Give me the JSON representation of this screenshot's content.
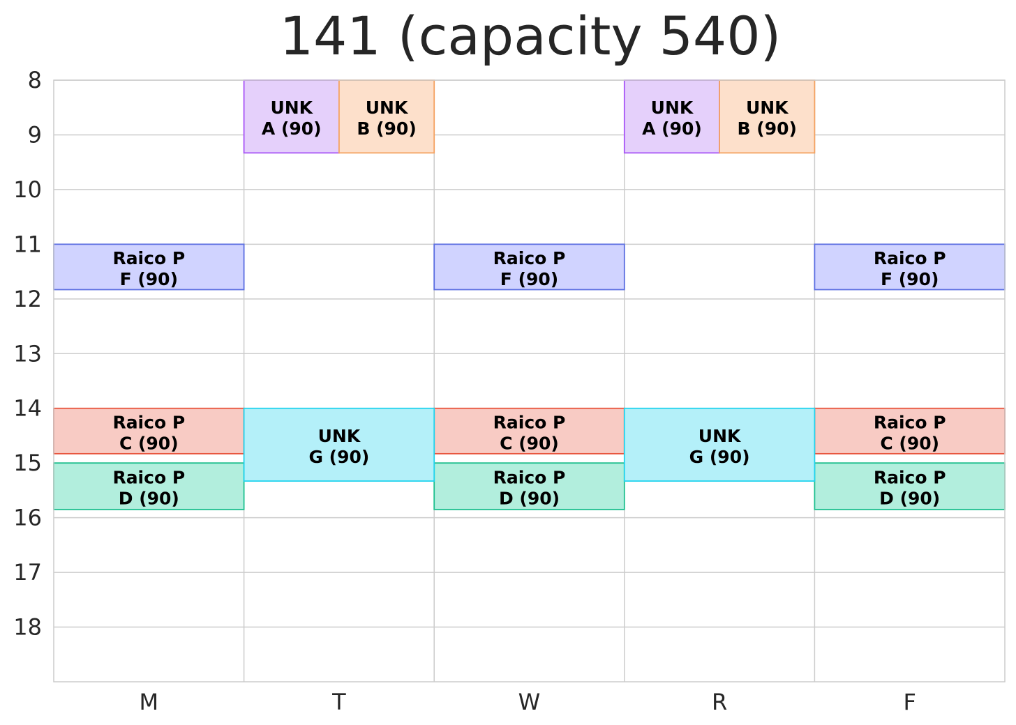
{
  "chart_data": {
    "type": "schedule",
    "title": "141 (capacity 540)",
    "days": [
      "M",
      "T",
      "W",
      "R",
      "F"
    ],
    "hour_ticks": [
      8,
      9,
      10,
      11,
      12,
      13,
      14,
      15,
      16,
      17,
      18
    ],
    "ylim": [
      8,
      19
    ],
    "grid": true,
    "blocks": [
      {
        "day": "T",
        "start": 8.0,
        "end": 9.33,
        "line1": "UNK",
        "line2": "A (90)",
        "lane": 0,
        "lanes": 2,
        "fill": "#e5d0fb",
        "stroke": "#a855f7"
      },
      {
        "day": "T",
        "start": 8.0,
        "end": 9.33,
        "line1": "UNK",
        "line2": "B (90)",
        "lane": 1,
        "lanes": 2,
        "fill": "#fde0cb",
        "stroke": "#f4a261"
      },
      {
        "day": "R",
        "start": 8.0,
        "end": 9.33,
        "line1": "UNK",
        "line2": "A (90)",
        "lane": 0,
        "lanes": 2,
        "fill": "#e5d0fb",
        "stroke": "#a855f7"
      },
      {
        "day": "R",
        "start": 8.0,
        "end": 9.33,
        "line1": "UNK",
        "line2": "B (90)",
        "lane": 1,
        "lanes": 2,
        "fill": "#fde0cb",
        "stroke": "#f4a261"
      },
      {
        "day": "M",
        "start": 11.0,
        "end": 11.83,
        "line1": "Raico P",
        "line2": "F (90)",
        "lane": 0,
        "lanes": 1,
        "fill": "#d0d3ff",
        "stroke": "#5b6ee1"
      },
      {
        "day": "W",
        "start": 11.0,
        "end": 11.83,
        "line1": "Raico P",
        "line2": "F (90)",
        "lane": 0,
        "lanes": 1,
        "fill": "#d0d3ff",
        "stroke": "#5b6ee1"
      },
      {
        "day": "F",
        "start": 11.0,
        "end": 11.83,
        "line1": "Raico P",
        "line2": "F (90)",
        "lane": 0,
        "lanes": 1,
        "fill": "#d0d3ff",
        "stroke": "#5b6ee1"
      },
      {
        "day": "M",
        "start": 14.0,
        "end": 14.83,
        "line1": "Raico P",
        "line2": "C (90)",
        "lane": 0,
        "lanes": 1,
        "fill": "#f8cbc4",
        "stroke": "#e8553e"
      },
      {
        "day": "W",
        "start": 14.0,
        "end": 14.83,
        "line1": "Raico P",
        "line2": "C (90)",
        "lane": 0,
        "lanes": 1,
        "fill": "#f8cbc4",
        "stroke": "#e8553e"
      },
      {
        "day": "F",
        "start": 14.0,
        "end": 14.83,
        "line1": "Raico P",
        "line2": "C (90)",
        "lane": 0,
        "lanes": 1,
        "fill": "#f8cbc4",
        "stroke": "#e8553e"
      },
      {
        "day": "M",
        "start": 15.0,
        "end": 15.85,
        "line1": "Raico P",
        "line2": "D (90)",
        "lane": 0,
        "lanes": 1,
        "fill": "#b2eedd",
        "stroke": "#1ec08f"
      },
      {
        "day": "W",
        "start": 15.0,
        "end": 15.85,
        "line1": "Raico P",
        "line2": "D (90)",
        "lane": 0,
        "lanes": 1,
        "fill": "#b2eedd",
        "stroke": "#1ec08f"
      },
      {
        "day": "F",
        "start": 15.0,
        "end": 15.85,
        "line1": "Raico P",
        "line2": "D (90)",
        "lane": 0,
        "lanes": 1,
        "fill": "#b2eedd",
        "stroke": "#1ec08f"
      },
      {
        "day": "T",
        "start": 14.0,
        "end": 15.33,
        "line1": "UNK",
        "line2": "G (90)",
        "lane": 0,
        "lanes": 1,
        "fill": "#b4f0f9",
        "stroke": "#22d3ee"
      },
      {
        "day": "R",
        "start": 14.0,
        "end": 15.33,
        "line1": "UNK",
        "line2": "G (90)",
        "lane": 0,
        "lanes": 1,
        "fill": "#b4f0f9",
        "stroke": "#22d3ee"
      }
    ]
  }
}
